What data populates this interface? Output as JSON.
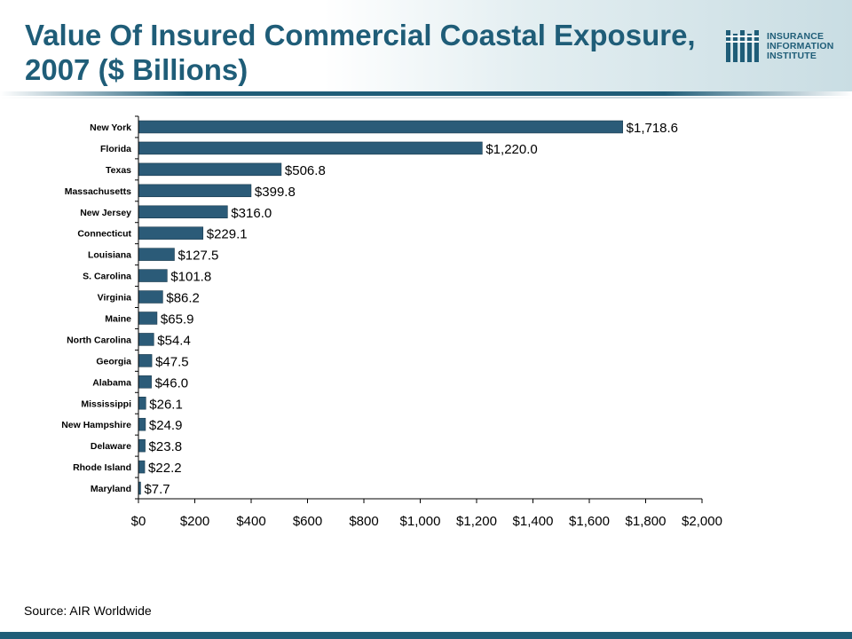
{
  "title_line1": "Value Of Insured Commercial Coastal Exposure,",
  "title_line2": "2007 ($ Billions)",
  "logo": {
    "line1": "INSURANCE",
    "line2": "INFORMATION",
    "line3": "INSTITUTE"
  },
  "source": "Source: AIR Worldwide",
  "colors": {
    "bar": "#2b5b78",
    "title": "#1f5d78"
  },
  "chart_data": {
    "type": "bar",
    "orientation": "horizontal",
    "title": "",
    "xlabel": "",
    "ylabel": "",
    "xlim": [
      0,
      2000
    ],
    "grid": false,
    "categories": [
      "New York",
      "Florida",
      "Texas",
      "Massachusetts",
      "New Jersey",
      "Connecticut",
      "Louisiana",
      "S. Carolina",
      "Virginia",
      "Maine",
      "North Carolina",
      "Georgia",
      "Alabama",
      "Mississippi",
      "New Hampshire",
      "Delaware",
      "Rhode Island",
      "Maryland"
    ],
    "values": [
      1718.6,
      1220.0,
      506.8,
      399.8,
      316.0,
      229.1,
      127.5,
      101.8,
      86.2,
      65.9,
      54.4,
      47.5,
      46.0,
      26.1,
      24.9,
      23.8,
      22.2,
      7.7
    ],
    "data_labels": [
      "$1,718.6",
      "$1,220.0",
      "$506.8",
      "$399.8",
      "$316.0",
      "$229.1",
      "$127.5",
      "$101.8",
      "$86.2",
      "$65.9",
      "$54.4",
      "$47.5",
      "$46.0",
      "$26.1",
      "$24.9",
      "$23.8",
      "$22.2",
      "$7.7"
    ],
    "x_ticks": [
      0,
      200,
      400,
      600,
      800,
      1000,
      1200,
      1400,
      1600,
      1800,
      2000
    ],
    "x_tick_labels": [
      "$0",
      "$200",
      "$400",
      "$600",
      "$800",
      "$1,000",
      "$1,200",
      "$1,400",
      "$1,600",
      "$1,800",
      "$2,000"
    ]
  }
}
